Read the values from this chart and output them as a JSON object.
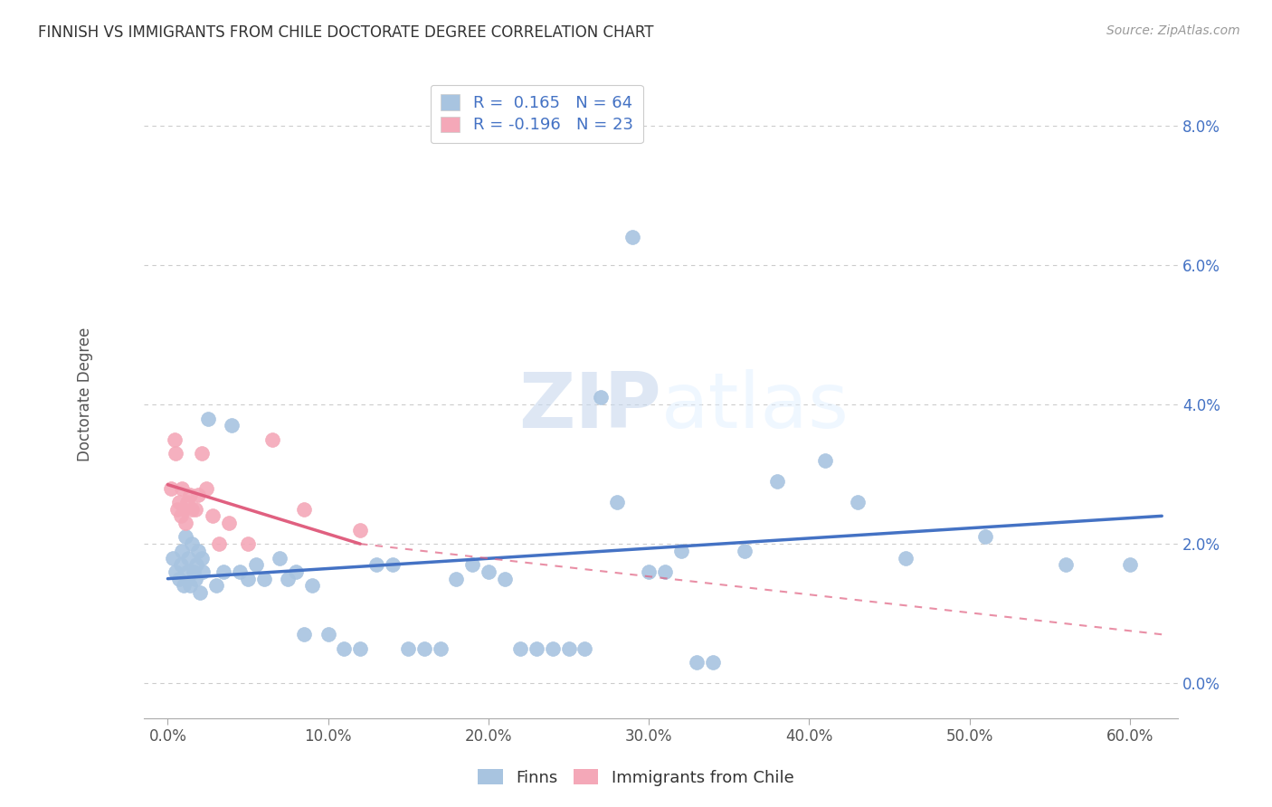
{
  "title": "FINNISH VS IMMIGRANTS FROM CHILE DOCTORATE DEGREE CORRELATION CHART",
  "source": "Source: ZipAtlas.com",
  "ylabel": "Doctorate Degree",
  "xlabel_ticks": [
    "0.0%",
    "10.0%",
    "20.0%",
    "30.0%",
    "40.0%",
    "50.0%",
    "60.0%"
  ],
  "xlabel_vals": [
    0.0,
    10.0,
    20.0,
    30.0,
    40.0,
    50.0,
    60.0
  ],
  "ylabel_ticks": [
    "0.0%",
    "2.0%",
    "4.0%",
    "6.0%",
    "8.0%"
  ],
  "ylabel_vals": [
    0.0,
    2.0,
    4.0,
    6.0,
    8.0
  ],
  "xmin": -1.5,
  "xmax": 63.0,
  "ymin": -0.5,
  "ymax": 8.8,
  "finns_color": "#a8c4e0",
  "chile_color": "#f4a8b8",
  "finn_trendline_color": "#4472c4",
  "chile_trendline_color": "#e06080",
  "watermark_part1": "ZIP",
  "watermark_part2": "atlas",
  "legend_r_finn": "R =  0.165",
  "legend_n_finn": "N = 64",
  "legend_r_chile": "R = -0.196",
  "legend_n_chile": "N = 23",
  "finns_x": [
    0.3,
    0.5,
    0.7,
    0.8,
    0.9,
    1.0,
    1.1,
    1.2,
    1.3,
    1.4,
    1.5,
    1.6,
    1.7,
    1.8,
    1.9,
    2.0,
    2.1,
    2.2,
    2.5,
    3.0,
    3.5,
    4.0,
    4.5,
    5.0,
    5.5,
    6.0,
    7.0,
    7.5,
    8.0,
    8.5,
    9.0,
    10.0,
    11.0,
    12.0,
    13.0,
    14.0,
    15.0,
    16.0,
    17.0,
    18.0,
    19.0,
    20.0,
    21.0,
    22.0,
    23.0,
    24.0,
    25.0,
    26.0,
    27.0,
    28.0,
    29.0,
    30.0,
    31.0,
    32.0,
    33.0,
    34.0,
    36.0,
    38.0,
    41.0,
    43.0,
    46.0,
    51.0,
    56.0,
    60.0
  ],
  "finns_y": [
    1.8,
    1.6,
    1.5,
    1.7,
    1.9,
    1.4,
    2.1,
    1.6,
    1.8,
    1.4,
    2.0,
    1.6,
    1.5,
    1.7,
    1.9,
    1.3,
    1.8,
    1.6,
    3.8,
    1.4,
    1.6,
    3.7,
    1.6,
    1.5,
    1.7,
    1.5,
    1.8,
    1.5,
    1.6,
    0.7,
    1.4,
    0.7,
    0.5,
    0.5,
    1.7,
    1.7,
    0.5,
    0.5,
    0.5,
    1.5,
    1.7,
    1.6,
    1.5,
    0.5,
    0.5,
    0.5,
    0.5,
    0.5,
    4.1,
    2.6,
    6.4,
    1.6,
    1.6,
    1.9,
    0.3,
    0.3,
    1.9,
    2.9,
    3.2,
    2.6,
    1.8,
    2.1,
    1.7,
    1.7
  ],
  "chile_x": [
    0.2,
    0.4,
    0.5,
    0.6,
    0.7,
    0.8,
    0.9,
    1.0,
    1.1,
    1.2,
    1.4,
    1.5,
    1.7,
    1.9,
    2.1,
    2.4,
    2.8,
    3.2,
    3.8,
    5.0,
    6.5,
    8.5,
    12.0
  ],
  "chile_y": [
    2.8,
    3.5,
    3.3,
    2.5,
    2.6,
    2.4,
    2.8,
    2.5,
    2.3,
    2.6,
    2.7,
    2.5,
    2.5,
    2.7,
    3.3,
    2.8,
    2.4,
    2.0,
    2.3,
    2.0,
    3.5,
    2.5,
    2.2
  ],
  "finn_trend_x0": 0.0,
  "finn_trend_y0": 1.5,
  "finn_trend_x1": 62.0,
  "finn_trend_y1": 2.4,
  "chile_solid_x0": 0.0,
  "chile_solid_y0": 2.85,
  "chile_solid_x1": 12.0,
  "chile_solid_y1": 2.0,
  "chile_dash_x0": 12.0,
  "chile_dash_y0": 2.0,
  "chile_dash_x1": 62.0,
  "chile_dash_y1": 0.7
}
